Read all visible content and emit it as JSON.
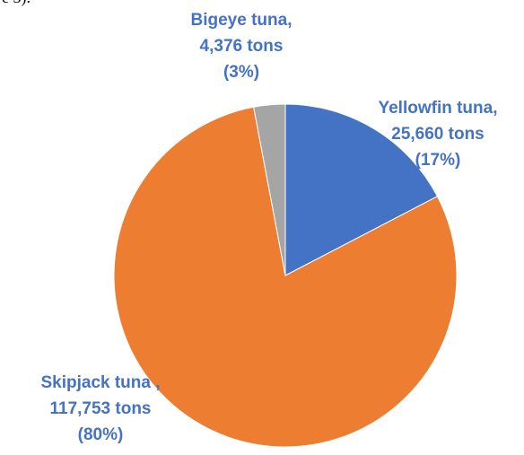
{
  "header_fragment": "e 3).",
  "chart_data": {
    "type": "pie",
    "unit": "tons",
    "start_angle_deg": 0,
    "direction": "clockwise",
    "label_color": "#4472C4",
    "slices": [
      {
        "name": "Yellowfin tuna",
        "value": 25660,
        "percent": 17,
        "color": "#4472C4",
        "label_lines": [
          "Yellowfin tuna,",
          "25,660 tons",
          "(17%)"
        ]
      },
      {
        "name": "Skipjack tuna",
        "value": 117753,
        "percent": 80,
        "color": "#ED7D31",
        "label_lines": [
          "Skipjack tuna ,",
          "117,753 tons",
          "(80%)"
        ]
      },
      {
        "name": "Bigeye tuna",
        "value": 4376,
        "percent": 3,
        "color": "#A5A5A5",
        "label_lines": [
          "Bigeye tuna,",
          "4,376 tons",
          "(3%)"
        ]
      }
    ]
  }
}
